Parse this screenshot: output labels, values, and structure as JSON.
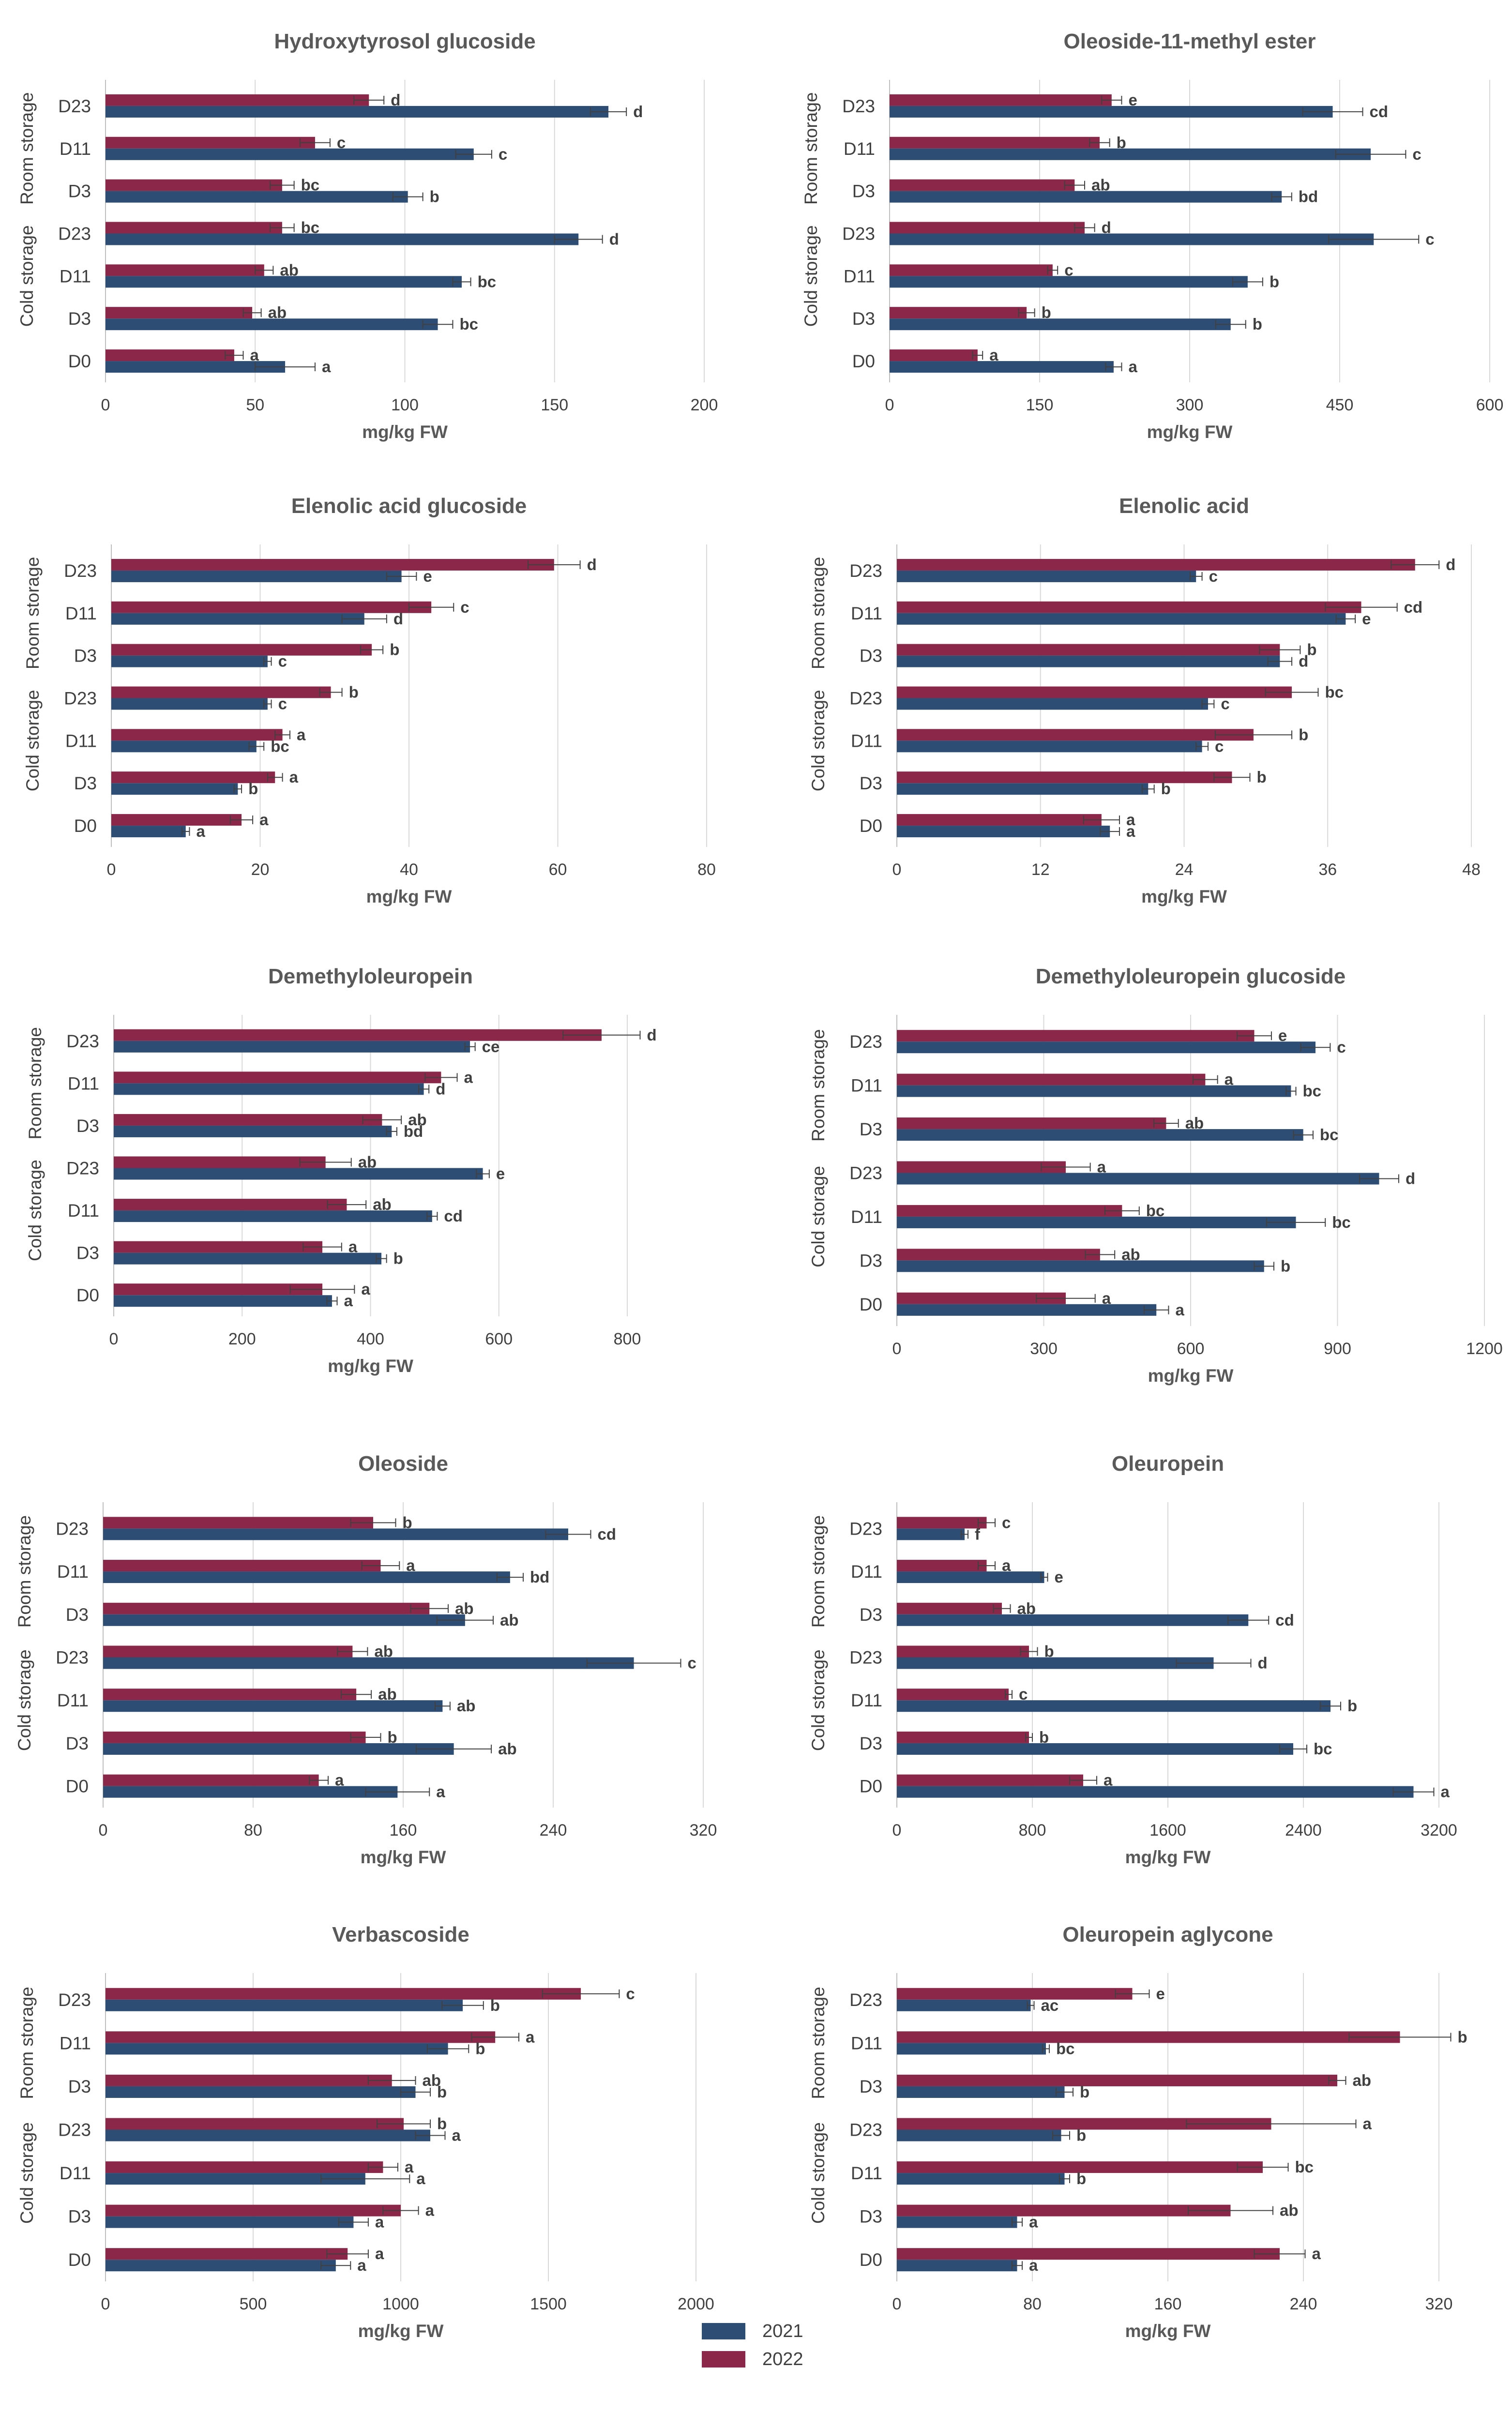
{
  "colors": {
    "series_2021": "#2e4d74",
    "series_2022": "#8b2748",
    "grid": "#d9d9d9",
    "axis": "#bfbfbf",
    "error": "#404040"
  },
  "legend": [
    {
      "label": "2021",
      "color": "#2e4d74"
    },
    {
      "label": "2022",
      "color": "#8b2748"
    }
  ],
  "chart_data": [
    {
      "type": "bar",
      "orientation": "horizontal",
      "title": "Hydroxytyrosol glucoside",
      "xlabel": "mg/kg FW",
      "categories": [
        "D23",
        "D11",
        "D3",
        "D23",
        "D11",
        "D3",
        "D0"
      ],
      "groups": [
        {
          "label": "Room storage",
          "rows": [
            0,
            1,
            2
          ]
        },
        {
          "label": "Cold storage",
          "rows": [
            3,
            4,
            5
          ]
        }
      ],
      "xlim": [
        0,
        200
      ],
      "xticks": [
        0,
        50,
        100,
        150,
        200
      ],
      "series": [
        {
          "name": "2021",
          "values": [
            168,
            123,
            101,
            158,
            119,
            111,
            60
          ],
          "errors": [
            6,
            6,
            5,
            8,
            3,
            5,
            10
          ],
          "letters": [
            "d",
            "c",
            "b",
            "d",
            "bc",
            "bc",
            "a"
          ]
        },
        {
          "name": "2022",
          "values": [
            88,
            70,
            59,
            59,
            53,
            49,
            43
          ],
          "errors": [
            5,
            5,
            4,
            4,
            3,
            3,
            3
          ],
          "letters": [
            "d",
            "c",
            "bc",
            "bc",
            "ab",
            "ab",
            "a"
          ]
        }
      ]
    },
    {
      "type": "bar",
      "orientation": "horizontal",
      "title": "Oleoside-11-methyl ester",
      "xlabel": "mg/kg FW",
      "categories": [
        "D23",
        "D11",
        "D3",
        "D23",
        "D11",
        "D3",
        "D0"
      ],
      "groups": [
        {
          "label": "Room storage",
          "rows": [
            0,
            1,
            2
          ]
        },
        {
          "label": "Cold storage",
          "rows": [
            3,
            4,
            5
          ]
        }
      ],
      "xlim": [
        0,
        600
      ],
      "xticks": [
        0,
        150,
        300,
        450,
        600
      ],
      "series": [
        {
          "name": "2021",
          "values": [
            443,
            481,
            392,
            484,
            358,
            341,
            224
          ],
          "errors": [
            30,
            35,
            10,
            45,
            15,
            15,
            8
          ],
          "letters": [
            "cd",
            "c",
            "bd",
            "c",
            "b",
            "b",
            "a"
          ]
        },
        {
          "name": "2022",
          "values": [
            222,
            210,
            185,
            195,
            163,
            137,
            88
          ],
          "errors": [
            10,
            10,
            10,
            10,
            5,
            8,
            5
          ],
          "letters": [
            "e",
            "b",
            "ab",
            "d",
            "c",
            "b",
            "a"
          ]
        }
      ]
    },
    {
      "type": "bar",
      "orientation": "horizontal",
      "title": "Elenolic acid glucoside",
      "xlabel": "mg/kg FW",
      "categories": [
        "D23",
        "D11",
        "D3",
        "D23",
        "D11",
        "D3",
        "D0"
      ],
      "groups": [
        {
          "label": "Room storage",
          "rows": [
            0,
            1,
            2
          ]
        },
        {
          "label": "Cold storage",
          "rows": [
            3,
            4,
            5
          ]
        }
      ],
      "xlim": [
        0,
        80
      ],
      "xticks": [
        0,
        20,
        40,
        60,
        80
      ],
      "series": [
        {
          "name": "2021",
          "values": [
            39,
            34,
            21,
            21,
            19.5,
            17,
            10
          ],
          "errors": [
            2,
            3,
            0.5,
            0.5,
            1,
            0.5,
            0.5
          ],
          "letters": [
            "e",
            "d",
            "c",
            "c",
            "bc",
            "b",
            "a"
          ]
        },
        {
          "name": "2022",
          "values": [
            59.5,
            43,
            35,
            29.5,
            23,
            22,
            17.5
          ],
          "errors": [
            3.5,
            3,
            1.5,
            1.5,
            1,
            1,
            1.5
          ],
          "letters": [
            "d",
            "c",
            "b",
            "b",
            "a",
            "a",
            "a"
          ]
        }
      ]
    },
    {
      "type": "bar",
      "orientation": "horizontal",
      "title": "Elenolic acid",
      "xlabel": "mg/kg FW",
      "categories": [
        "D23",
        "D11",
        "D3",
        "D23",
        "D11",
        "D3",
        "D0"
      ],
      "groups": [
        {
          "label": "Room storage",
          "rows": [
            0,
            1,
            2
          ]
        },
        {
          "label": "Cold storage",
          "rows": [
            3,
            4,
            5
          ]
        }
      ],
      "xlim": [
        0,
        48
      ],
      "xticks": [
        0,
        12,
        24,
        36,
        48
      ],
      "series": [
        {
          "name": "2021",
          "values": [
            25,
            37.5,
            32,
            26,
            25.5,
            21,
            17.8
          ],
          "errors": [
            0.5,
            0.8,
            1,
            0.5,
            0.5,
            0.5,
            0.8
          ],
          "letters": [
            "c",
            "e",
            "d",
            "c",
            "c",
            "b",
            "a"
          ]
        },
        {
          "name": "2022",
          "values": [
            43.3,
            38.8,
            32,
            33,
            29.8,
            28,
            17.1
          ],
          "errors": [
            2,
            3,
            1.7,
            2.2,
            3.2,
            1.5,
            1.5
          ],
          "letters": [
            "d",
            "cd",
            "b",
            "bc",
            "b",
            "b",
            "a"
          ]
        }
      ]
    },
    {
      "type": "bar",
      "orientation": "horizontal",
      "title": "Demethyloleuropein",
      "xlabel": "mg/kg FW",
      "categories": [
        "D23",
        "D11",
        "D3",
        "D23",
        "D11",
        "D3",
        "D0"
      ],
      "groups": [
        {
          "label": "Room storage",
          "rows": [
            0,
            1,
            2
          ]
        },
        {
          "label": "Cold storage",
          "rows": [
            3,
            4,
            5
          ]
        }
      ],
      "xlim": [
        0,
        800
      ],
      "xticks": [
        0,
        200,
        400,
        600,
        800
      ],
      "series": [
        {
          "name": "2021",
          "values": [
            555,
            483,
            433,
            575,
            496,
            417,
            340
          ],
          "errors": [
            8,
            8,
            8,
            10,
            8,
            8,
            8
          ],
          "letters": [
            "ce",
            "d",
            "bd",
            "e",
            "cd",
            "b",
            "a"
          ]
        },
        {
          "name": "2022",
          "values": [
            760,
            510,
            418,
            330,
            363,
            325,
            325
          ],
          "errors": [
            60,
            25,
            30,
            40,
            30,
            30,
            50
          ],
          "letters": [
            "d",
            "a",
            "ab",
            "ab",
            "ab",
            "a",
            "a"
          ]
        }
      ]
    },
    {
      "type": "bar",
      "orientation": "horizontal",
      "title": "Demethyloleuropein glucoside",
      "xlabel": "mg/kg FW",
      "categories": [
        "D23",
        "D11",
        "D3",
        "D23",
        "D11",
        "D3",
        "D0"
      ],
      "groups": [
        {
          "label": "Room storage",
          "rows": [
            0,
            1,
            2
          ]
        },
        {
          "label": "Cold storage",
          "rows": [
            3,
            4,
            5
          ]
        }
      ],
      "xlim": [
        0,
        1200
      ],
      "xticks": [
        0,
        300,
        600,
        900,
        1200
      ],
      "series": [
        {
          "name": "2021",
          "values": [
            855,
            805,
            830,
            985,
            815,
            750,
            530
          ],
          "errors": [
            30,
            10,
            20,
            40,
            60,
            20,
            25
          ],
          "letters": [
            "c",
            "bc",
            "bc",
            "d",
            "bc",
            "b",
            "a"
          ]
        },
        {
          "name": "2022",
          "values": [
            730,
            630,
            550,
            345,
            460,
            415,
            345
          ],
          "errors": [
            35,
            25,
            25,
            50,
            35,
            30,
            60
          ],
          "letters": [
            "e",
            "a",
            "ab",
            "a",
            "bc",
            "ab",
            "a"
          ]
        }
      ]
    },
    {
      "type": "bar",
      "orientation": "horizontal",
      "title": "Oleoside",
      "xlabel": "mg/kg FW",
      "categories": [
        "D23",
        "D11",
        "D3",
        "D23",
        "D11",
        "D3",
        "D0"
      ],
      "groups": [
        {
          "label": "Room storage",
          "rows": [
            0,
            1,
            2
          ]
        },
        {
          "label": "Cold storage",
          "rows": [
            3,
            4,
            5
          ]
        }
      ],
      "xlim": [
        0,
        320
      ],
      "xticks": [
        0,
        80,
        160,
        240,
        320
      ],
      "series": [
        {
          "name": "2021",
          "values": [
            248,
            217,
            193,
            283,
            181,
            187,
            157
          ],
          "errors": [
            12,
            7,
            15,
            25,
            4,
            20,
            17
          ],
          "letters": [
            "cd",
            "bd",
            "ab",
            "c",
            "ab",
            "ab",
            "a"
          ]
        },
        {
          "name": "2022",
          "values": [
            144,
            148,
            174,
            133,
            135,
            140,
            115
          ],
          "errors": [
            12,
            10,
            10,
            8,
            8,
            8,
            5
          ],
          "letters": [
            "b",
            "a",
            "ab",
            "ab",
            "ab",
            "b",
            "a"
          ]
        }
      ]
    },
    {
      "type": "bar",
      "orientation": "horizontal",
      "title": "Oleuropein",
      "xlabel": "mg/kg FW",
      "categories": [
        "D23",
        "D11",
        "D3",
        "D23",
        "D11",
        "D3",
        "D0"
      ],
      "groups": [
        {
          "label": "Room storage",
          "rows": [
            0,
            1,
            2
          ]
        },
        {
          "label": "Cold storage",
          "rows": [
            3,
            4,
            5
          ]
        }
      ],
      "xlim": [
        0,
        3200
      ],
      "xticks": [
        0,
        800,
        1600,
        2400,
        3200
      ],
      "series": [
        {
          "name": "2021",
          "values": [
            400,
            870,
            2075,
            1870,
            2560,
            2340,
            3050
          ],
          "errors": [
            20,
            20,
            120,
            220,
            60,
            80,
            120
          ],
          "letters": [
            "f",
            "e",
            "cd",
            "d",
            "b",
            "bc",
            "a"
          ]
        },
        {
          "name": "2022",
          "values": [
            530,
            530,
            620,
            780,
            660,
            780,
            1100
          ],
          "errors": [
            50,
            50,
            50,
            50,
            20,
            20,
            80
          ],
          "letters": [
            "c",
            "a",
            "ab",
            "b",
            "c",
            "b",
            "a"
          ]
        }
      ]
    },
    {
      "type": "bar",
      "orientation": "horizontal",
      "title": "Verbascoside",
      "xlabel": "mg/kg FW",
      "categories": [
        "D23",
        "D11",
        "D3",
        "D23",
        "D11",
        "D3",
        "D0"
      ],
      "groups": [
        {
          "label": "Room storage",
          "rows": [
            0,
            1,
            2
          ]
        },
        {
          "label": "Cold storage",
          "rows": [
            3,
            4,
            5
          ]
        }
      ],
      "xlim": [
        0,
        2000
      ],
      "xticks": [
        0,
        500,
        1000,
        1500,
        2000
      ],
      "series": [
        {
          "name": "2021",
          "values": [
            1210,
            1160,
            1050,
            1100,
            880,
            840,
            780
          ],
          "errors": [
            70,
            70,
            50,
            50,
            150,
            50,
            50
          ],
          "letters": [
            "b",
            "b",
            "b",
            "a",
            "a",
            "a",
            "a"
          ]
        },
        {
          "name": "2022",
          "values": [
            1610,
            1320,
            970,
            1010,
            940,
            1000,
            820
          ],
          "errors": [
            130,
            80,
            80,
            90,
            50,
            60,
            70
          ],
          "letters": [
            "c",
            "a",
            "ab",
            "b",
            "a",
            "a",
            "a"
          ]
        }
      ]
    },
    {
      "type": "bar",
      "orientation": "horizontal",
      "title": "Oleuropein aglycone",
      "xlabel": "mg/kg FW",
      "categories": [
        "D23",
        "D11",
        "D3",
        "D23",
        "D11",
        "D3",
        "D0"
      ],
      "groups": [
        {
          "label": "Room storage",
          "rows": [
            0,
            1,
            2
          ]
        },
        {
          "label": "Cold storage",
          "rows": [
            3,
            4,
            5
          ]
        }
      ],
      "xlim": [
        0,
        320
      ],
      "xticks": [
        0,
        80,
        160,
        240,
        320
      ],
      "series": [
        {
          "name": "2021",
          "values": [
            79,
            88,
            99,
            97,
            99,
            71,
            71
          ],
          "errors": [
            2,
            2,
            5,
            5,
            3,
            3,
            3
          ],
          "letters": [
            "ac",
            "bc",
            "b",
            "b",
            "b",
            "a",
            "a"
          ]
        },
        {
          "name": "2022",
          "values": [
            139,
            297,
            260,
            221,
            216,
            197,
            226
          ],
          "errors": [
            10,
            30,
            5,
            50,
            15,
            25,
            15
          ],
          "letters": [
            "e",
            "b",
            "ab",
            "a",
            "bc",
            "ab",
            "a"
          ]
        }
      ]
    }
  ]
}
